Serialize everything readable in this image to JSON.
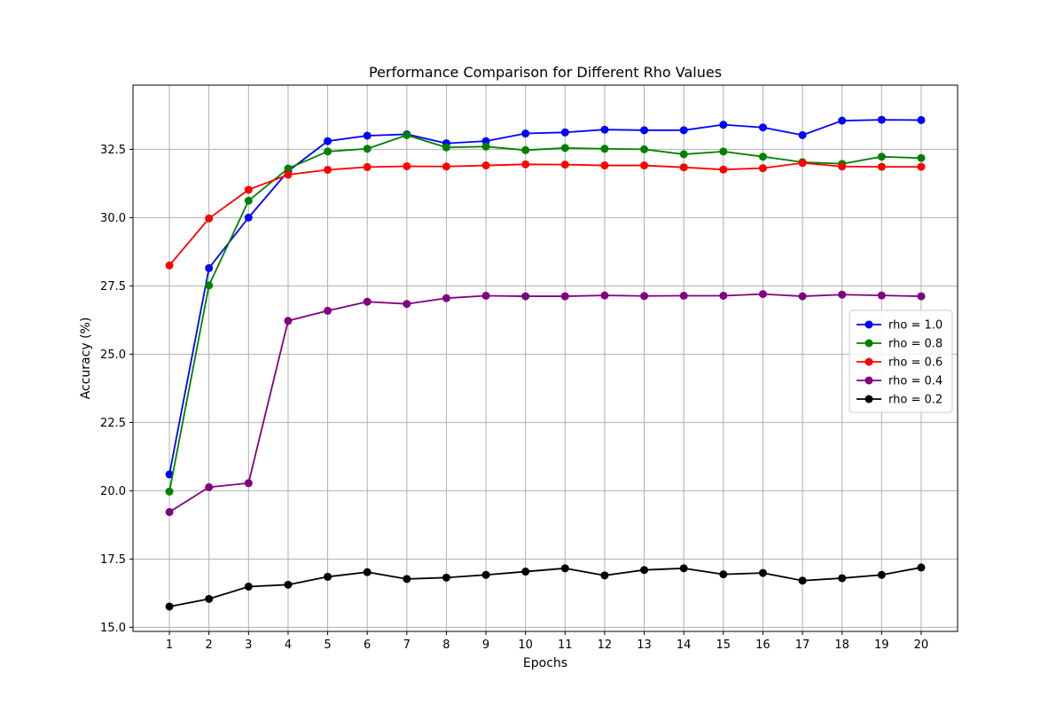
{
  "chart_data": {
    "type": "line",
    "title": "Performance Comparison for Different Rho Values",
    "xlabel": "Epochs",
    "ylabel": "Accuracy (%)",
    "x": [
      1,
      2,
      3,
      4,
      5,
      6,
      7,
      8,
      9,
      10,
      11,
      12,
      13,
      14,
      15,
      16,
      17,
      18,
      19,
      20
    ],
    "xlim": [
      0.08,
      20.92
    ],
    "ylim": [
      14.85,
      34.85
    ],
    "yticks": [
      15.0,
      17.5,
      20.0,
      22.5,
      25.0,
      27.5,
      30.0,
      32.5
    ],
    "ytick_labels": [
      "15.0",
      "17.5",
      "20.0",
      "22.5",
      "25.0",
      "27.5",
      "30.0",
      "32.5"
    ],
    "xtick_labels": [
      "1",
      "2",
      "3",
      "4",
      "5",
      "6",
      "7",
      "8",
      "9",
      "10",
      "11",
      "12",
      "13",
      "14",
      "15",
      "16",
      "17",
      "18",
      "19",
      "20"
    ],
    "grid": true,
    "legend_position": "center-right",
    "series": [
      {
        "name": "rho = 1.0",
        "color": "#0000ff",
        "values": [
          20.6,
          28.15,
          30.0,
          31.7,
          32.8,
          33.0,
          33.05,
          32.72,
          32.8,
          33.08,
          33.12,
          33.22,
          33.2,
          33.2,
          33.4,
          33.3,
          33.02,
          33.55,
          33.58,
          33.57
        ]
      },
      {
        "name": "rho = 0.8",
        "color": "#008000",
        "values": [
          19.97,
          27.52,
          30.62,
          31.8,
          32.42,
          32.52,
          33.02,
          32.57,
          32.6,
          32.47,
          32.55,
          32.52,
          32.5,
          32.32,
          32.42,
          32.23,
          32.03,
          31.97,
          32.23,
          32.18
        ]
      },
      {
        "name": "rho = 0.6",
        "color": "#ff0000",
        "values": [
          28.25,
          29.97,
          31.02,
          31.57,
          31.75,
          31.85,
          31.88,
          31.87,
          31.91,
          31.95,
          31.94,
          31.91,
          31.91,
          31.84,
          31.76,
          31.81,
          32.0,
          31.87,
          31.86,
          31.86
        ]
      },
      {
        "name": "rho = 0.4",
        "color": "#800080",
        "values": [
          19.22,
          20.13,
          20.28,
          26.22,
          26.59,
          26.92,
          26.84,
          27.05,
          27.14,
          27.12,
          27.12,
          27.15,
          27.13,
          27.14,
          27.14,
          27.2,
          27.12,
          27.18,
          27.15,
          27.12
        ]
      },
      {
        "name": "rho = 0.2",
        "color": "#000000",
        "values": [
          15.76,
          16.04,
          16.49,
          16.56,
          16.85,
          17.02,
          16.77,
          16.82,
          16.92,
          17.04,
          17.16,
          16.9,
          17.1,
          17.16,
          16.94,
          16.99,
          16.71,
          16.8,
          16.92,
          17.19
        ]
      }
    ]
  }
}
